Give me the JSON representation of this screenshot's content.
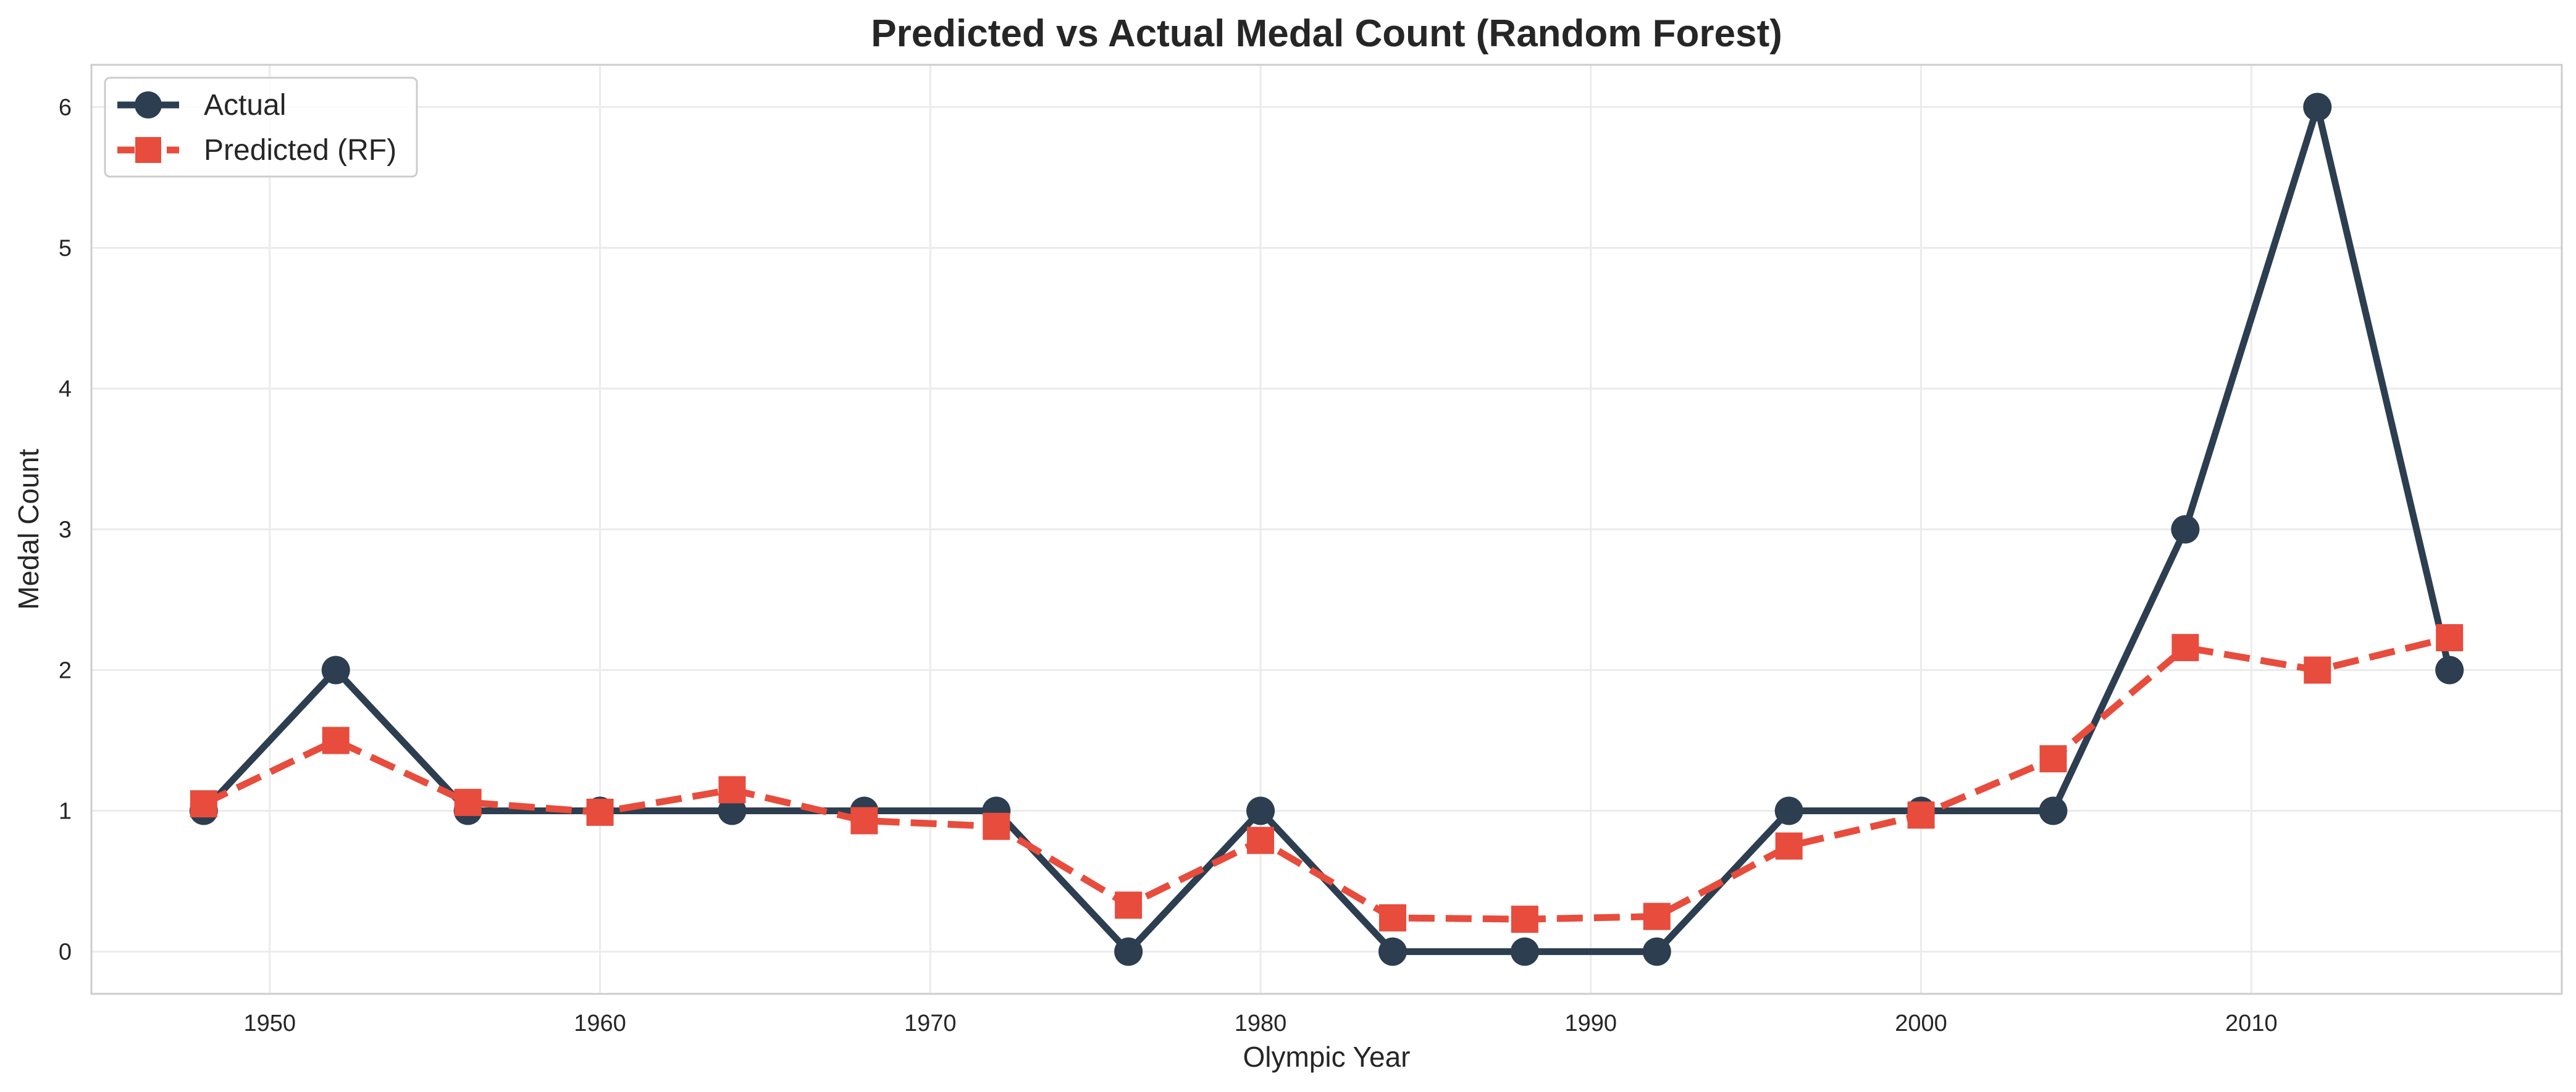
{
  "chart_data": {
    "type": "line",
    "title": "Predicted vs Actual Medal Count (Random Forest)",
    "xlabel": "Olympic Year",
    "ylabel": "Medal Count",
    "x": [
      1948,
      1952,
      1956,
      1960,
      1964,
      1968,
      1972,
      1976,
      1980,
      1984,
      1988,
      1992,
      1996,
      2000,
      2004,
      2008,
      2012,
      2016
    ],
    "series": [
      {
        "name": "Actual",
        "values": [
          1,
          2,
          1,
          1,
          1,
          1,
          1,
          0,
          1,
          0,
          0,
          0,
          1,
          1,
          1,
          3,
          6,
          2
        ],
        "color": "#2c3e50",
        "line_style": "solid",
        "marker": "circle"
      },
      {
        "name": "Predicted (RF)",
        "values": [
          1.05,
          1.5,
          1.06,
          0.99,
          1.15,
          0.93,
          0.89,
          0.33,
          0.79,
          0.24,
          0.23,
          0.25,
          0.75,
          0.97,
          1.37,
          2.16,
          2.0,
          2.23
        ],
        "color": "#e74c3c",
        "line_style": "dashed",
        "marker": "square"
      }
    ],
    "xlim": [
      1944.6,
      2019.4
    ],
    "ylim": [
      -0.3,
      6.3
    ],
    "xticks": [
      "1950",
      "1960",
      "1970",
      "1980",
      "1990",
      "2000",
      "2010"
    ],
    "yticks": [
      "0",
      "1",
      "2",
      "3",
      "4",
      "5",
      "6"
    ],
    "grid": true,
    "legend_position": "top-left"
  }
}
